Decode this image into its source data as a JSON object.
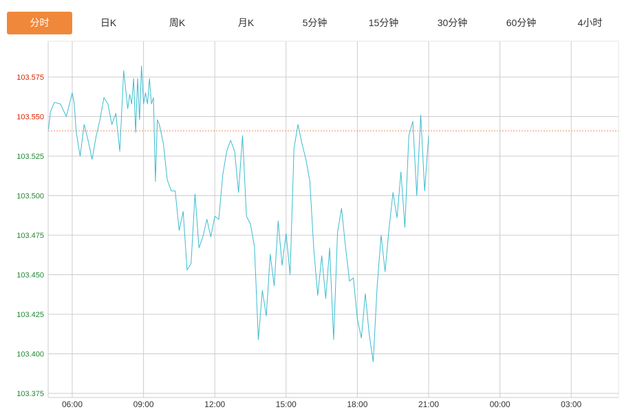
{
  "tabs": [
    {
      "label": "分时",
      "active": true
    },
    {
      "label": "日K",
      "active": false
    },
    {
      "label": "周K",
      "active": false
    },
    {
      "label": "月K",
      "active": false
    },
    {
      "label": "5分钟",
      "active": false
    },
    {
      "label": "15分钟",
      "active": false
    },
    {
      "label": "30分钟",
      "active": false
    },
    {
      "label": "60分钟",
      "active": false
    },
    {
      "label": "4小时",
      "active": false
    }
  ],
  "colors": {
    "accent": "#f0883b",
    "line": "#3bbcd0",
    "reference_line": "#f08a5d",
    "grid": "#cccccc",
    "y_label_above_ref": "#dd2200",
    "y_label_below_ref": "#228833",
    "x_label": "#333333"
  },
  "chart_data": {
    "type": "line",
    "x_ticks": [
      "06:00",
      "09:00",
      "12:00",
      "15:00",
      "18:00",
      "21:00",
      "00:00",
      "03:00"
    ],
    "y_ticks": [
      "103.575",
      "103.550",
      "103.525",
      "103.500",
      "103.475",
      "103.450",
      "103.425",
      "103.400",
      "103.375"
    ],
    "ylim": [
      103.375,
      103.5875
    ],
    "x_range_hours": [
      "05:00",
      "05:00 next day"
    ],
    "reference_value": 103.541,
    "reference_style": "dashed",
    "grid": true,
    "series": [
      {
        "x": [
          "05:00",
          "05:05",
          "05:15",
          "05:30",
          "05:45",
          "06:00",
          "06:05",
          "06:10",
          "06:20",
          "06:30",
          "06:40",
          "06:50",
          "07:00",
          "07:10",
          "07:20",
          "07:30",
          "07:40",
          "07:50",
          "08:00",
          "08:10",
          "08:20",
          "08:25",
          "08:30",
          "08:35",
          "08:40",
          "08:45",
          "08:50",
          "08:55",
          "09:00",
          "09:05",
          "09:10",
          "09:15",
          "09:20",
          "09:25",
          "09:30",
          "09:35",
          "09:40",
          "09:50",
          "10:00",
          "10:10",
          "10:20",
          "10:30",
          "10:40",
          "10:50",
          "11:00",
          "11:10",
          "11:20",
          "11:30",
          "11:40",
          "11:50",
          "12:00",
          "12:10",
          "12:20",
          "12:30",
          "12:40",
          "12:50",
          "13:00",
          "13:10",
          "13:20",
          "13:30",
          "13:40",
          "13:50",
          "14:00",
          "14:10",
          "14:20",
          "14:30",
          "14:40",
          "14:50",
          "15:00",
          "15:10",
          "15:20",
          "15:30",
          "15:40",
          "15:50",
          "16:00",
          "16:10",
          "16:20",
          "16:30",
          "16:40",
          "16:50",
          "17:00",
          "17:10",
          "17:20",
          "17:30",
          "17:40",
          "17:50",
          "18:00",
          "18:10",
          "18:20",
          "18:30",
          "18:40",
          "18:50",
          "19:00",
          "19:10",
          "19:20",
          "19:30",
          "19:40",
          "19:50",
          "20:00",
          "20:10",
          "20:20",
          "20:30",
          "20:40",
          "20:50",
          "21:00"
        ],
        "values": [
          103.542,
          103.553,
          103.559,
          103.558,
          103.55,
          103.565,
          103.558,
          103.54,
          103.525,
          103.545,
          103.535,
          103.523,
          103.537,
          103.548,
          103.562,
          103.558,
          103.545,
          103.552,
          103.528,
          103.579,
          103.555,
          103.564,
          103.558,
          103.574,
          103.54,
          103.574,
          103.548,
          103.582,
          103.558,
          103.565,
          103.558,
          103.574,
          103.558,
          103.562,
          103.509,
          103.548,
          103.545,
          103.533,
          103.51,
          103.503,
          103.503,
          103.478,
          103.49,
          103.453,
          103.457,
          103.501,
          103.467,
          103.474,
          103.485,
          103.474,
          103.487,
          103.485,
          103.513,
          103.528,
          103.535,
          103.528,
          103.502,
          103.538,
          103.487,
          103.482,
          103.468,
          103.409,
          103.44,
          103.424,
          103.463,
          103.443,
          103.484,
          103.456,
          103.476,
          103.45,
          103.53,
          103.545,
          103.533,
          103.523,
          103.509,
          103.466,
          103.437,
          103.462,
          103.435,
          103.467,
          103.409,
          103.477,
          103.492,
          103.468,
          103.446,
          103.448,
          103.422,
          103.41,
          103.438,
          103.412,
          103.395,
          103.443,
          103.475,
          103.452,
          103.479,
          103.502,
          103.486,
          103.515,
          103.48,
          103.538,
          103.547,
          103.5,
          103.551,
          103.503,
          103.538
        ]
      }
    ]
  }
}
